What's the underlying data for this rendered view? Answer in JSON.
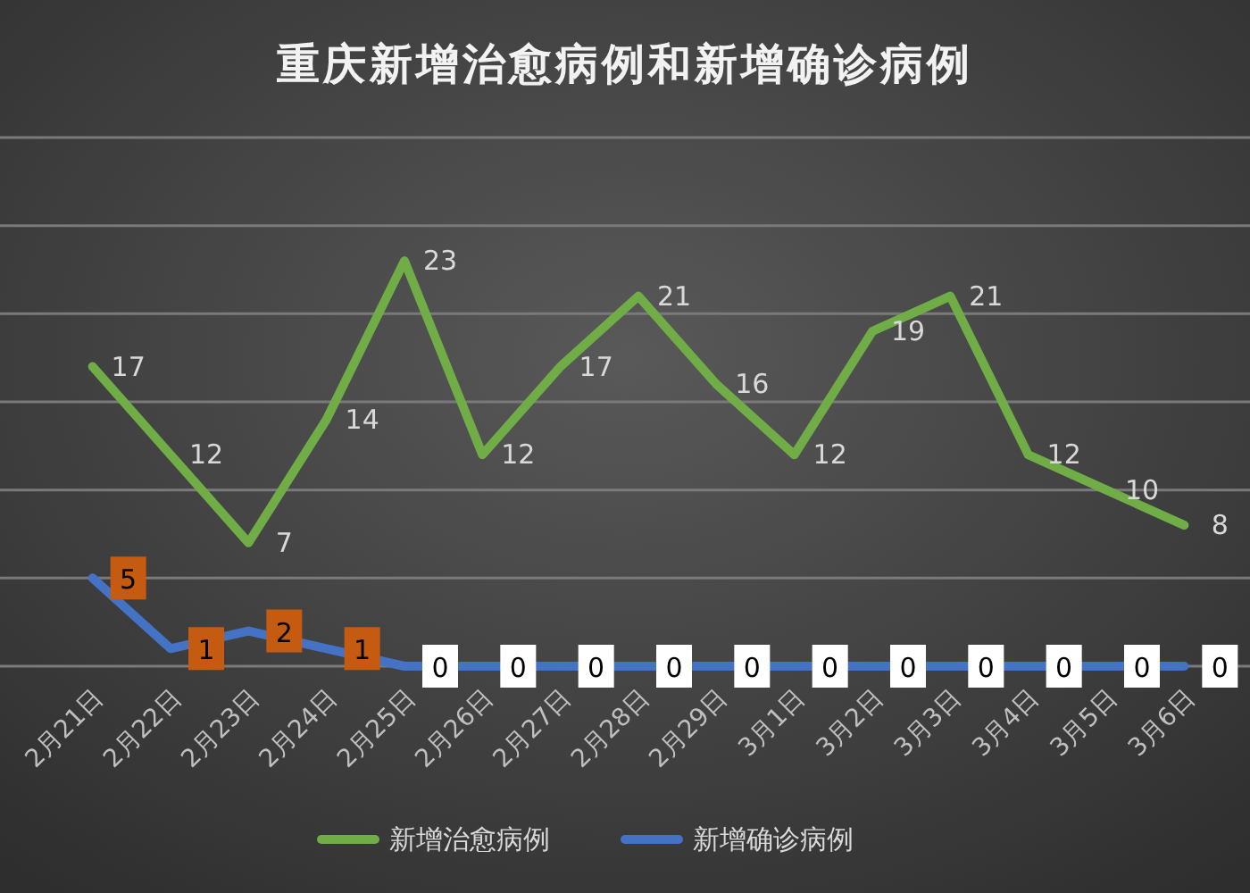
{
  "chart_data": {
    "type": "line",
    "title": "重庆新增治愈病例和新增确诊病例",
    "categories": [
      "2月21日",
      "2月22日",
      "2月23日",
      "2月24日",
      "2月25日",
      "2月26日",
      "2月27日",
      "2月28日",
      "2月29日",
      "3月1日",
      "3月2日",
      "3月3日",
      "3月4日",
      "3月5日",
      "3月6日"
    ],
    "series": [
      {
        "name": "新增治愈病例",
        "color": "#70ad47",
        "values": [
          17,
          12,
          7,
          14,
          23,
          12,
          17,
          21,
          16,
          12,
          19,
          21,
          12,
          10,
          8
        ]
      },
      {
        "name": "新增确诊病例",
        "color": "#4472c4",
        "values": [
          5,
          1,
          2,
          1,
          0,
          0,
          0,
          0,
          0,
          0,
          0,
          0,
          0,
          0,
          0
        ]
      }
    ],
    "ylim": [
      0,
      30
    ],
    "yticks": [
      {
        "value": 0,
        "label": null
      },
      {
        "value": 5,
        "label": null
      },
      {
        "value": 10,
        "label": null
      },
      {
        "value": 15,
        "label": null
      },
      {
        "value": 20,
        "label": null
      },
      {
        "value": 25,
        "label": null
      },
      {
        "value": 30,
        "label": null
      }
    ],
    "grid": "y",
    "tick_labels": "x",
    "legend": "bottom",
    "data_labels": true,
    "marker": "none",
    "line_style": "solid"
  }
}
